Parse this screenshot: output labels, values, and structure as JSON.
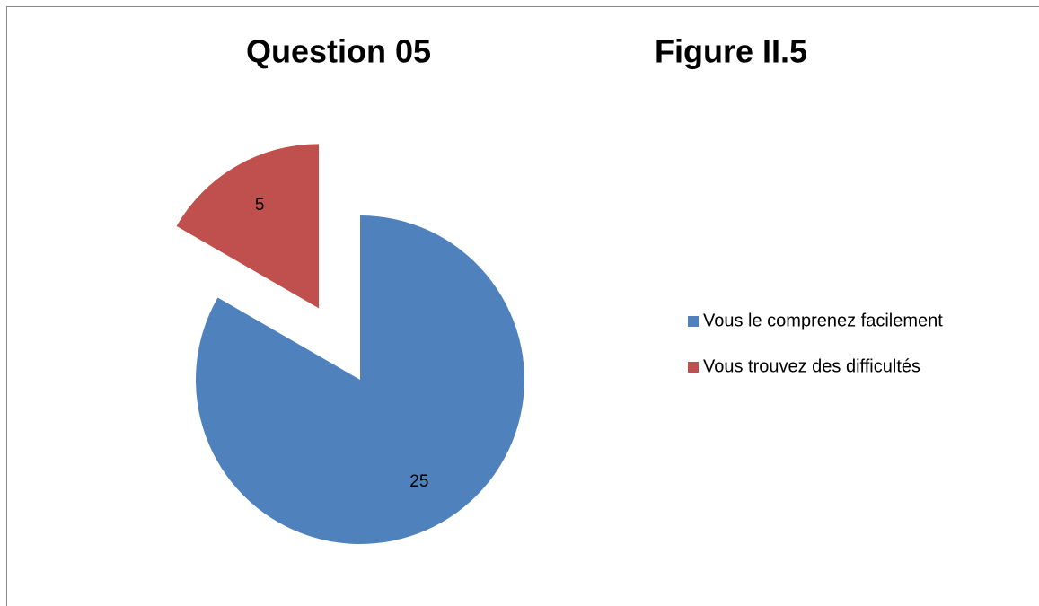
{
  "chart_data": {
    "type": "pie",
    "title": "Question 05",
    "annotation": "Figure II.5",
    "categories": [
      "Vous le comprenez facilement",
      "Vous trouvez des difficultés"
    ],
    "values": [
      25,
      5
    ],
    "colors": [
      "#4f81bd",
      "#c0504d"
    ],
    "explode": [
      false,
      true
    ],
    "legend": "right"
  }
}
